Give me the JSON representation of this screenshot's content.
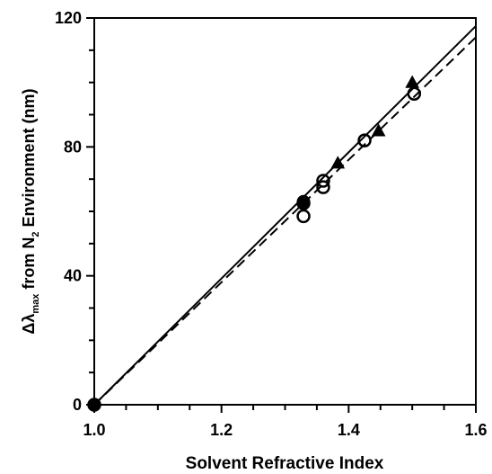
{
  "chart_data": {
    "type": "scatter",
    "title": "",
    "xlabel": "Solvent Refractive Index",
    "ylabel": {
      "prefix": "Δλ",
      "subscript": "max",
      "middle": " from N",
      "subscript2": "2",
      "suffix": " Environment (nm)"
    },
    "xlim": [
      1.0,
      1.6
    ],
    "ylim": [
      0,
      120
    ],
    "x_ticks": [
      {
        "value": 1.0,
        "label": "1.0"
      },
      {
        "value": 1.2,
        "label": "1.2"
      },
      {
        "value": 1.4,
        "label": "1.4"
      },
      {
        "value": 1.6,
        "label": "1.6"
      }
    ],
    "y_ticks": [
      {
        "value": 0,
        "label": "0"
      },
      {
        "value": 40,
        "label": "40"
      },
      {
        "value": 80,
        "label": "80"
      },
      {
        "value": 120,
        "label": "120"
      }
    ],
    "grid": false,
    "legend": "none",
    "series": [
      {
        "marker": "open-circle",
        "points": [
          [
            1.0,
            0
          ],
          [
            1.329,
            58.5
          ],
          [
            1.329,
            62.5
          ],
          [
            1.36,
            67.5
          ],
          [
            1.36,
            69.5
          ],
          [
            1.425,
            82
          ],
          [
            1.503,
            96.5
          ]
        ]
      },
      {
        "marker": "filled-circle",
        "points": [
          [
            1.0,
            0
          ],
          [
            1.329,
            63
          ]
        ]
      },
      {
        "marker": "filled-triangle",
        "points": [
          [
            1.383,
            75
          ],
          [
            1.447,
            85
          ],
          [
            1.5,
            100
          ]
        ]
      }
    ],
    "fit_lines": [
      {
        "style": "solid",
        "from": [
          1.0,
          0
        ],
        "to": [
          1.6,
          117.5
        ]
      },
      {
        "style": "dashed",
        "from": [
          1.0,
          0
        ],
        "to": [
          1.6,
          114
        ]
      }
    ]
  }
}
